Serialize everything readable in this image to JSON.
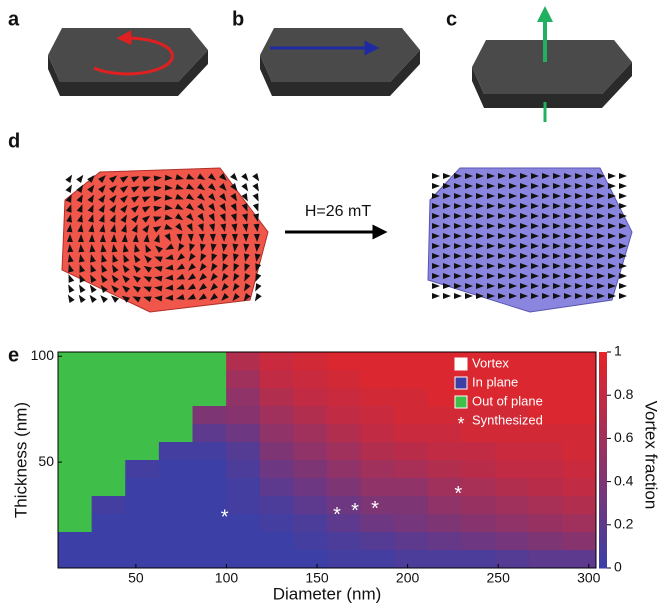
{
  "panel_labels": [
    "a",
    "b",
    "c",
    "d",
    "e"
  ],
  "field_label": "H=26 mT",
  "chart_data": {
    "type": "heatmap",
    "x_label": "Diameter (nm)",
    "y_label": "Thickness (nm)",
    "colorbar_label": "Vortex fraction",
    "xlim": [
      7,
      304
    ],
    "xticks": [
      50,
      100,
      150,
      200,
      250,
      300
    ],
    "ylim": [
      0,
      102
    ],
    "yticks": [
      50,
      100
    ],
    "clim": [
      0,
      1
    ],
    "cticks": [
      0,
      0.2,
      0.4,
      0.6,
      0.8,
      1
    ],
    "low_color": "#3b3fa6",
    "high_color": "#e3262a",
    "out_of_plane_color": "#3fbf4a",
    "matrix": [
      [
        null,
        null,
        null,
        null,
        null,
        0.7,
        0.85,
        0.9,
        0.95,
        0.95,
        0.95,
        0.95,
        0.95,
        0.95,
        0.95,
        0.95
      ],
      [
        null,
        null,
        null,
        null,
        null,
        0.6,
        0.8,
        0.85,
        0.9,
        0.95,
        0.95,
        0.95,
        0.95,
        0.95,
        0.95,
        0.95
      ],
      [
        null,
        null,
        null,
        null,
        null,
        0.5,
        0.7,
        0.8,
        0.85,
        0.9,
        0.9,
        0.95,
        0.95,
        0.95,
        0.95,
        0.95
      ],
      [
        null,
        null,
        null,
        null,
        0.4,
        0.45,
        0.6,
        0.7,
        0.8,
        0.85,
        0.9,
        0.9,
        0.9,
        0.9,
        0.95,
        0.95
      ],
      [
        null,
        null,
        null,
        null,
        0.2,
        0.3,
        0.5,
        0.6,
        0.7,
        0.8,
        0.85,
        0.85,
        0.9,
        0.9,
        0.9,
        0.9
      ],
      [
        null,
        null,
        null,
        0.05,
        0.05,
        0.15,
        0.4,
        0.5,
        0.6,
        0.7,
        0.75,
        0.8,
        0.8,
        0.85,
        0.85,
        0.9
      ],
      [
        null,
        null,
        0.05,
        0,
        0,
        0.1,
        0.3,
        0.4,
        0.5,
        0.6,
        0.65,
        0.7,
        0.75,
        0.8,
        0.8,
        0.85
      ],
      [
        null,
        null,
        0,
        0,
        0,
        0.05,
        0.2,
        0.3,
        0.4,
        0.5,
        0.5,
        0.6,
        0.65,
        0.7,
        0.75,
        0.8
      ],
      [
        null,
        0.05,
        0,
        0,
        0,
        0.05,
        0.1,
        0.2,
        0.3,
        0.4,
        0.4,
        0.5,
        0.55,
        0.6,
        0.65,
        0.7
      ],
      [
        null,
        0,
        0,
        0,
        0,
        0,
        0.05,
        0.1,
        0.2,
        0.3,
        0.35,
        0.4,
        0.45,
        0.5,
        0.55,
        0.6
      ],
      [
        0,
        0,
        0,
        0,
        0,
        0,
        0,
        0.05,
        0.1,
        0.15,
        0.2,
        0.25,
        0.3,
        0.35,
        0.4,
        0.45
      ],
      [
        0,
        0,
        0,
        0,
        0,
        0,
        0,
        0,
        0.05,
        0.05,
        0.1,
        0.1,
        0.1,
        0.15,
        0.2,
        0.2
      ]
    ],
    "legend": [
      {
        "name": "Vortex",
        "color": "#ffffff"
      },
      {
        "name": "In plane",
        "color": "#3b3fa6"
      },
      {
        "name": "Out of plane",
        "color": "#3fbf4a"
      },
      {
        "name": "Synthesized",
        "color": "#ffffff"
      }
    ],
    "synthesized": {
      "x": [
        99,
        161,
        171,
        182,
        228
      ],
      "y": [
        25,
        26,
        28,
        29,
        36
      ]
    }
  }
}
